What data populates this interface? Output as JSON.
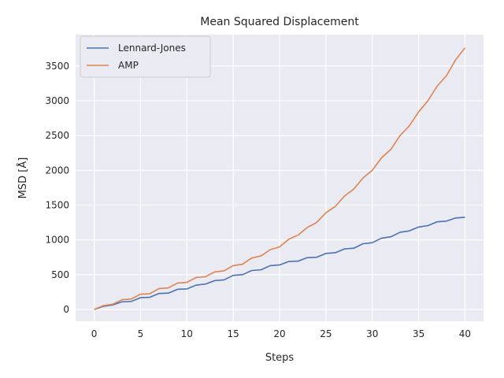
{
  "chart_data": {
    "type": "line",
    "title": "Mean Squared Displacement",
    "xlabel": "Steps",
    "ylabel": "MSD [Å]",
    "xlim": [
      -2,
      42
    ],
    "ylim": [
      -170,
      3950
    ],
    "xticks": [
      0,
      5,
      10,
      15,
      20,
      25,
      30,
      35,
      40
    ],
    "yticks": [
      0,
      500,
      1000,
      1500,
      2000,
      2500,
      3000,
      3500
    ],
    "grid": true,
    "legend_position": "top-left",
    "x": [
      0,
      1,
      2,
      3,
      4,
      5,
      6,
      7,
      8,
      9,
      10,
      11,
      12,
      13,
      14,
      15,
      16,
      17,
      18,
      19,
      20,
      21,
      22,
      23,
      24,
      25,
      26,
      27,
      28,
      29,
      30,
      31,
      32,
      33,
      34,
      35,
      36,
      37,
      38,
      39,
      40
    ],
    "series": [
      {
        "name": "Lennard-Jones",
        "color": "#4c72b0",
        "values": [
          0,
          45,
          65,
          110,
          115,
          170,
          175,
          230,
          235,
          290,
          295,
          350,
          365,
          415,
          425,
          490,
          500,
          560,
          570,
          630,
          640,
          690,
          695,
          745,
          750,
          805,
          815,
          870,
          880,
          945,
          960,
          1025,
          1045,
          1110,
          1130,
          1185,
          1205,
          1260,
          1270,
          1315,
          1325
        ]
      },
      {
        "name": "AMP",
        "color": "#dd8452",
        "values": [
          0,
          55,
          75,
          140,
          150,
          220,
          225,
          300,
          310,
          380,
          390,
          460,
          470,
          540,
          555,
          630,
          650,
          740,
          770,
          860,
          900,
          1010,
          1070,
          1180,
          1250,
          1390,
          1480,
          1630,
          1730,
          1890,
          2000,
          2180,
          2300,
          2500,
          2640,
          2840,
          3000,
          3210,
          3360,
          3590,
          3760
        ]
      }
    ]
  }
}
